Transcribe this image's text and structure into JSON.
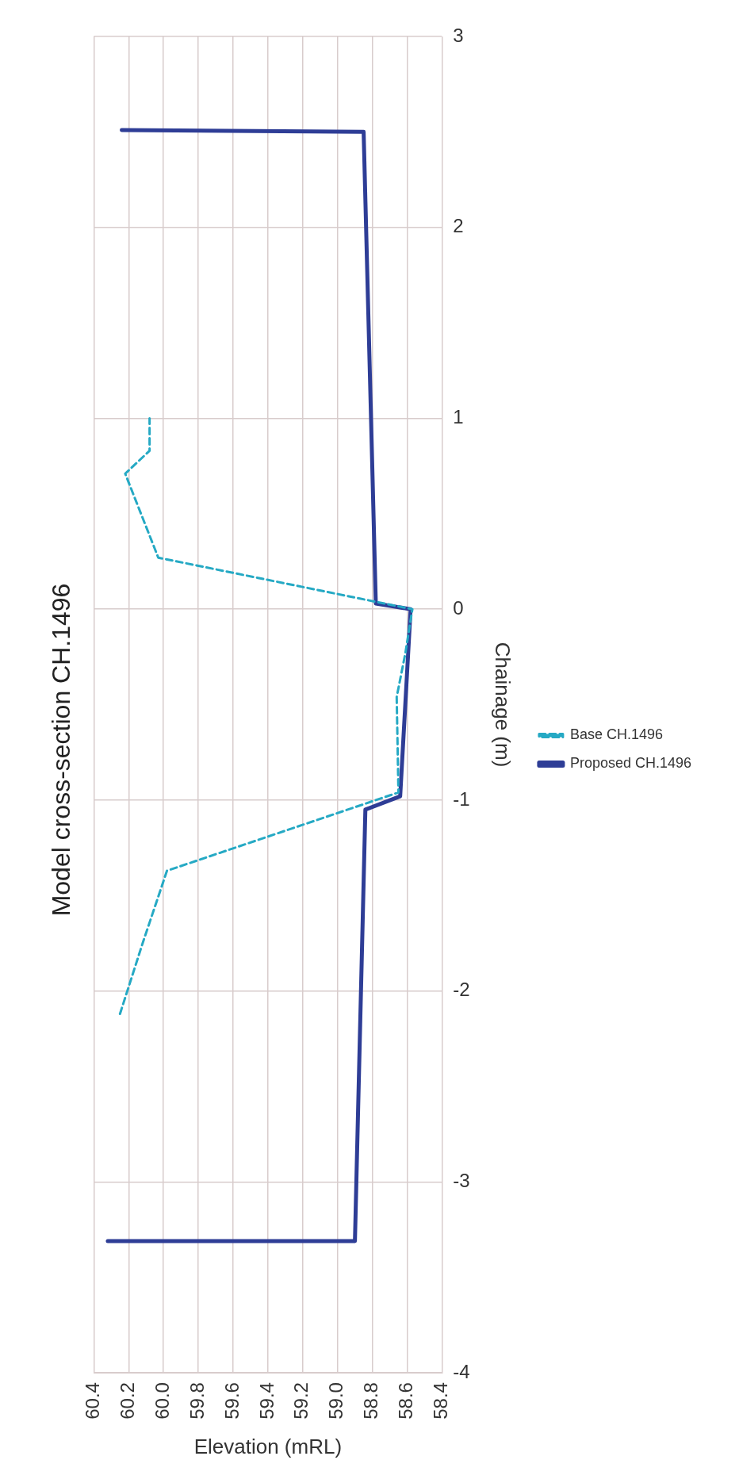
{
  "chart_data": {
    "type": "line",
    "title": "Model cross-section CH.1496",
    "xlabel": "Elevation (mRL)",
    "ylabel": "Chainage (m)",
    "xlim": [
      60.4,
      58.4
    ],
    "xticks": [
      60.4,
      60.2,
      {
        "value": 60,
        "label": "60.0"
      },
      59.8,
      59.6,
      59.4,
      59.2,
      {
        "value": 59,
        "label": "59.0"
      },
      58.8,
      58.6,
      58.4
    ],
    "ylim": [
      -4,
      3
    ],
    "yticks": [
      -4,
      -3,
      -2,
      -1,
      0,
      1,
      2,
      3
    ],
    "grid": true,
    "legend": "right",
    "marker": "none",
    "series": [
      {
        "name": "Base CH.1496",
        "color": "#25a9c4",
        "line_style": "dashed",
        "x": [
          60.25,
          60.12,
          59.98,
          58.65,
          58.66,
          58.61,
          58.57,
          60.03,
          60.22,
          60.08,
          60.08
        ],
        "values": [
          -2.12,
          -1.75,
          -1.37,
          -0.96,
          -0.46,
          -0.23,
          0,
          0.27,
          0.71,
          0.83,
          1.0
        ]
      },
      {
        "name": "Proposed CH.1496",
        "color": "#2e3d96",
        "line_style": "solid",
        "x": [
          60.32,
          58.9,
          58.84,
          58.64,
          58.58,
          58.78,
          58.85,
          60.24
        ],
        "values": [
          -3.31,
          -3.31,
          -1.05,
          -0.98,
          0,
          0.03,
          2.5,
          2.51
        ]
      }
    ]
  }
}
